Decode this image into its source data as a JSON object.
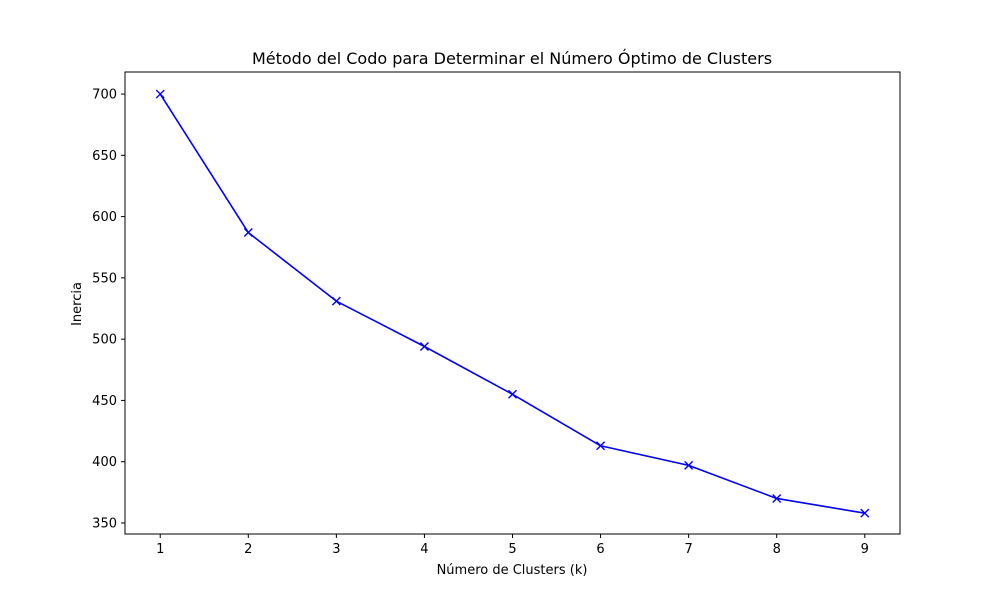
{
  "chart_data": {
    "type": "line",
    "title": "Método del Codo para Determinar el Número Óptimo de Clusters",
    "xlabel": "Número de Clusters (k)",
    "ylabel": "Inercia",
    "x": [
      1,
      2,
      3,
      4,
      5,
      6,
      7,
      8,
      9
    ],
    "xticks": [
      1,
      2,
      3,
      4,
      5,
      6,
      7,
      8,
      9
    ],
    "yticks": [
      350,
      400,
      450,
      500,
      550,
      600,
      650,
      700
    ],
    "xlim": [
      0.6,
      9.4
    ],
    "ylim": [
      341,
      718
    ],
    "grid": false,
    "series": [
      {
        "values": [
          700,
          587,
          531,
          494,
          455,
          413,
          397,
          370,
          358
        ],
        "color": "#0000ff",
        "marker": "x"
      }
    ]
  }
}
